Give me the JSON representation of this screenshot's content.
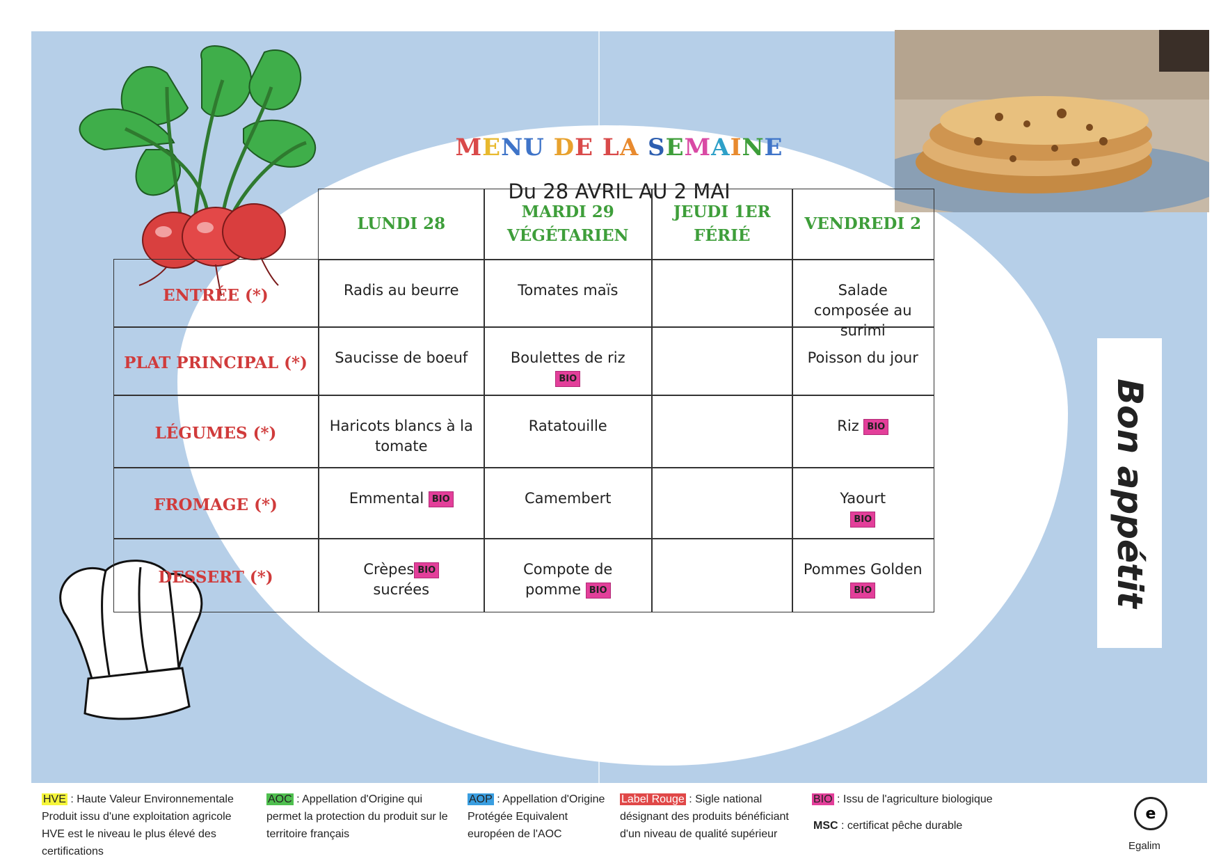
{
  "title_letters": [
    {
      "ch": "M",
      "color": "#d94a4a"
    },
    {
      "ch": "E",
      "color": "#e8b92e"
    },
    {
      "ch": "N",
      "color": "#3f74c8"
    },
    {
      "ch": "U",
      "color": "#3f74c8"
    },
    {
      "ch": " ",
      "color": "#000"
    },
    {
      "ch": "D",
      "color": "#e8a22e"
    },
    {
      "ch": "E",
      "color": "#d94a4a"
    },
    {
      "ch": " ",
      "color": "#000"
    },
    {
      "ch": "L",
      "color": "#d94a4a"
    },
    {
      "ch": "A",
      "color": "#e88a2e"
    },
    {
      "ch": " ",
      "color": "#000"
    },
    {
      "ch": "S",
      "color": "#2e5fb0"
    },
    {
      "ch": "E",
      "color": "#3e9e3a"
    },
    {
      "ch": "M",
      "color": "#d94aa4"
    },
    {
      "ch": "A",
      "color": "#2ea0c8"
    },
    {
      "ch": "I",
      "color": "#e88a2e"
    },
    {
      "ch": "N",
      "color": "#3e9e3a"
    },
    {
      "ch": "E",
      "color": "#3f74c8"
    }
  ],
  "subtitle": "Du 28 AVRIL AU 2 MAI",
  "days": [
    "LUNDI 28",
    "MARDI 29\nVÉGÉTARIEN",
    "JEUDI 1ER\nFÉRIÉ",
    "VENDREDI 2"
  ],
  "rows": [
    {
      "label": "ENTRÉE (*)",
      "cells": [
        {
          "text": "Radis au beurre",
          "bio": ""
        },
        {
          "text": "Tomates maïs",
          "bio": ""
        },
        {
          "text": "",
          "bio": ""
        },
        {
          "text": "Salade composée au surimi",
          "bio": ""
        }
      ]
    },
    {
      "label": "PLAT PRINCIPAL (*)",
      "cells": [
        {
          "text": "Saucisse de boeuf",
          "bio": ""
        },
        {
          "text": "Boulettes de riz",
          "bio": "BIO"
        },
        {
          "text": "",
          "bio": ""
        },
        {
          "text": "Poisson du jour",
          "bio": ""
        }
      ]
    },
    {
      "label": "LÉGUMES (*)",
      "cells": [
        {
          "text": "Haricots blancs à la tomate",
          "bio": ""
        },
        {
          "text": "Ratatouille",
          "bio": ""
        },
        {
          "text": "",
          "bio": ""
        },
        {
          "text": "Riz",
          "bio": "BIO",
          "inline": true
        }
      ]
    },
    {
      "label": "FROMAGE (*)",
      "cells": [
        {
          "text": "Emmental",
          "bio": "BIO",
          "inline": true
        },
        {
          "text": "Camembert",
          "bio": ""
        },
        {
          "text": "",
          "bio": ""
        },
        {
          "text": "Yaourt",
          "bio": "BIO"
        }
      ]
    },
    {
      "label": "DESSERT (*)",
      "cells": [
        {
          "text": "Crèpes",
          "bio": "BIO",
          "inline": true,
          "after": "sucrées"
        },
        {
          "text": "Compote de pomme",
          "bio": "BIO",
          "inline": true
        },
        {
          "text": "",
          "bio": ""
        },
        {
          "text": "Pommes Golden",
          "bio": "BIO"
        }
      ]
    }
  ],
  "bon_appetit": "Bon appétit",
  "legend": {
    "hve": {
      "tag": "HVE",
      "tag_color": "#f5f53a",
      "text": " : Haute Valeur Environnementale Produit issu d'une exploitation agricole HVE est le niveau le plus élevé des certifications"
    },
    "aoc": {
      "tag": "AOC",
      "tag_color": "#4fbf4f",
      "text": " : Appellation d'Origine qui permet la protection du produit sur le territoire français"
    },
    "aop": {
      "tag": "AOP",
      "tag_color": "#3a9ee0",
      "text": " : Appellation d'Origine Protégée Equivalent européen de l'AOC"
    },
    "label_rouge": {
      "tag": "Label Rouge",
      "tag_color": "#e04848",
      "text": " : Sigle national désignant des produits bénéficiant d'un niveau de qualité supérieur"
    },
    "bio": {
      "tag": "BIO",
      "tag_color": "#e33f9a",
      "text": " : Issu de l'agriculture biologique"
    },
    "msc": {
      "tag": "MSC",
      "text": " : certificat pêche durable"
    },
    "egalim_letter": "e",
    "egalim": "Egalim"
  }
}
